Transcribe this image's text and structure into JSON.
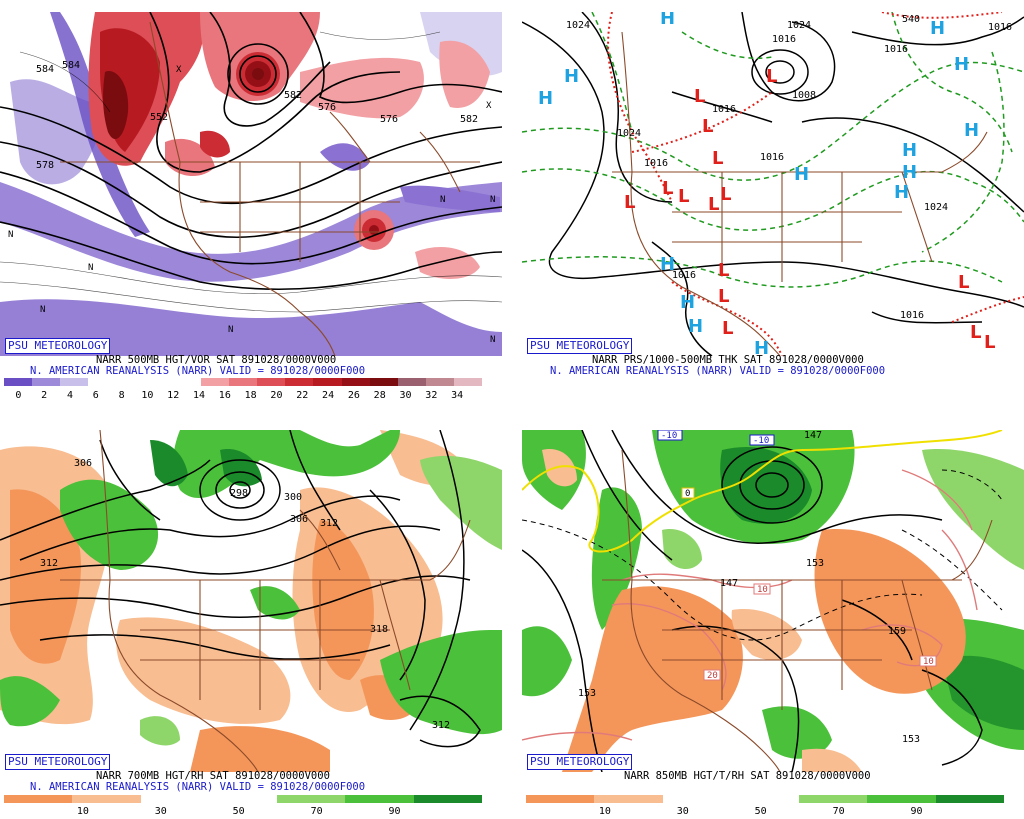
{
  "brand": "PSU METEOROLOGY",
  "reanalysis_line": "N. AMERICAN REANALYSIS (NARR) VALID = 891028/0000F000",
  "panels": {
    "p500": {
      "title": "NARR 500MB HGT/VOR SAT 891028/0000V000",
      "colorbar_ticks": [
        "0",
        "2",
        "4",
        "6",
        "8",
        "10",
        "12",
        "14",
        "16",
        "18",
        "20",
        "22",
        "24",
        "26",
        "28",
        "30",
        "32",
        "34"
      ],
      "contour_labels": [
        "584",
        "578",
        "576",
        "582",
        "584",
        "552",
        "576",
        "582"
      ],
      "region_letters": [
        "N",
        "N",
        "N",
        "N",
        "N",
        "N",
        "N",
        "X",
        "X"
      ]
    },
    "psfc": {
      "title": "NARR PRS/1000-500MB THK SAT 891028/0000V000",
      "isobar_labels": [
        "1024",
        "1024",
        "1016",
        "1016",
        "1024",
        "1016",
        "1008",
        "1016",
        "1016",
        "1024",
        "1016",
        "1016",
        "1016",
        "540"
      ],
      "highs": [
        "H",
        "H",
        "H",
        "H",
        "H",
        "H",
        "H",
        "H",
        "H",
        "H",
        "H",
        "H",
        "H",
        "H"
      ],
      "lows": [
        "L",
        "L",
        "L",
        "L",
        "L",
        "L",
        "L",
        "L",
        "L",
        "L",
        "L",
        "L",
        "L",
        "L",
        "L"
      ]
    },
    "p700": {
      "title": "NARR 700MB HGT/RH SAT 891028/0000V000",
      "colorbar_ticks": [
        "10",
        "30",
        "50",
        "70",
        "90"
      ],
      "contour_labels": [
        "306",
        "312",
        "300",
        "306",
        "312",
        "318",
        "312",
        "298"
      ]
    },
    "p850": {
      "title": "NARR 850MB HGT/T/RH SAT 891028/0000V000",
      "colorbar_ticks": [
        "10",
        "30",
        "50",
        "70",
        "90"
      ],
      "contour_labels": [
        "147",
        "153",
        "147",
        "153",
        "153",
        "159"
      ],
      "temp_boxes": [
        "-10",
        "-10",
        "0",
        "10",
        "20",
        "10"
      ]
    }
  },
  "colors": {
    "vort_scale": [
      "#6a4fc4",
      "#9d8ad8",
      "#c8c0ea",
      "#ffffff",
      "#ffffff",
      "#ffffff",
      "#ffffff",
      "#f2a0a4",
      "#e8767c",
      "#dd4e56",
      "#cc2d35",
      "#b81a22",
      "#951016",
      "#7a0c10",
      "#9a6070",
      "#c08890",
      "#e3b8c0"
    ],
    "rh_scale": [
      "#f4965a",
      "#f8bd91",
      "#ffffff",
      "#ffffff",
      "#8fd66a",
      "#4bc03a",
      "#1a8a2a"
    ],
    "border": "#8b4a2a",
    "high": "#1fa3e0",
    "low": "#e0201a",
    "thickness": "#1f9a1f",
    "front_red": "#e0201a"
  }
}
